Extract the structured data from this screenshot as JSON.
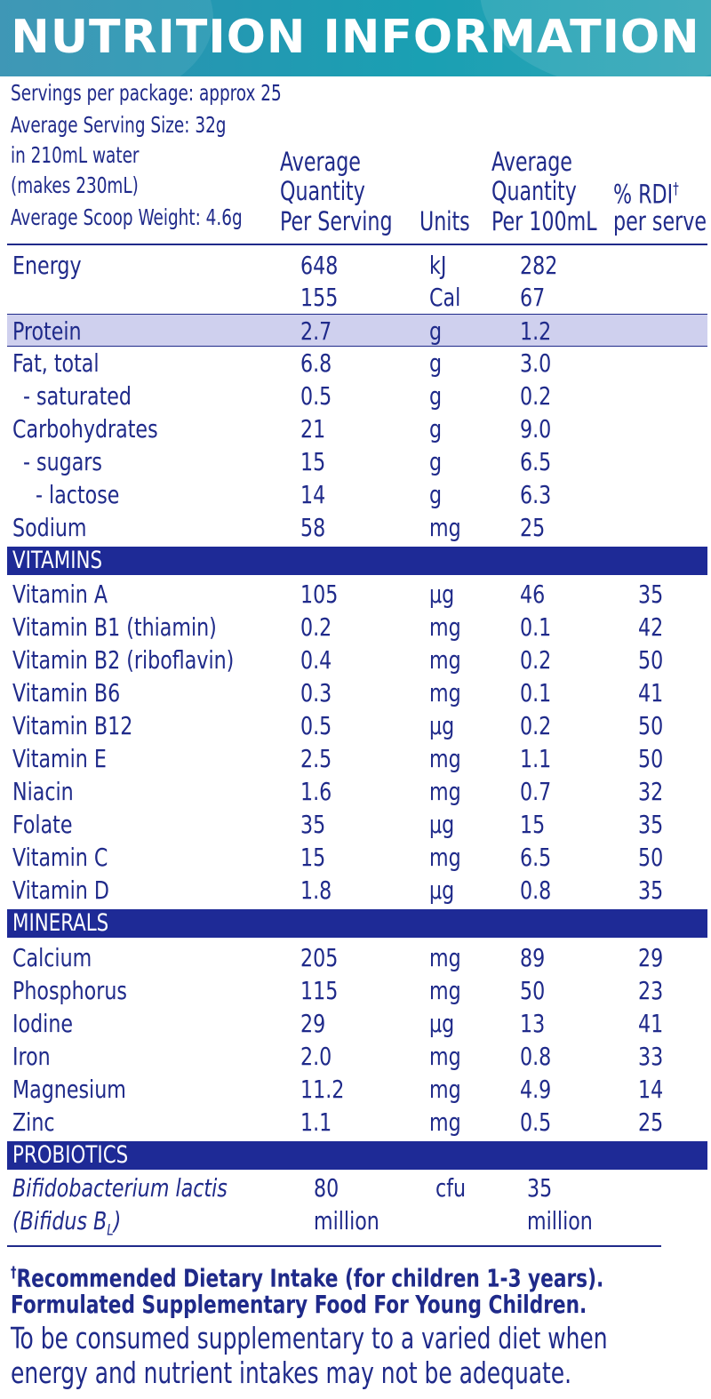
{
  "title": "NUTRITION INFORMATION",
  "header": {
    "servings": "Servings per package: approx 25",
    "serving_size": "Average Serving Size: 32g",
    "water": "in 210mL water",
    "makes": "(makes 230mL)",
    "scoop": "Average Scoop Weight: 4.6g"
  },
  "columns": {
    "per_serving_1": "Average",
    "per_serving_2": "Quantity",
    "per_serving_3": "Per Serving",
    "units": "Units",
    "per_100_1": "Average",
    "per_100_2": "Quantity",
    "per_100_3": "Per 100mL",
    "rdi_1": "% RDI",
    "rdi_dagger": "†",
    "rdi_2": "per serve"
  },
  "nutrients": [
    {
      "name": "Energy",
      "serve": "648",
      "unit": "kJ",
      "per100": "282",
      "rdi": ""
    },
    {
      "name": "",
      "serve": "155",
      "unit": "Cal",
      "per100": "67",
      "rdi": ""
    },
    {
      "name": "Protein",
      "serve": "2.7",
      "unit": "g",
      "per100": "1.2",
      "rdi": ""
    },
    {
      "name": "Fat, total",
      "serve": "6.8",
      "unit": "g",
      "per100": "3.0",
      "rdi": ""
    },
    {
      "name": "- saturated",
      "serve": "0.5",
      "unit": "g",
      "per100": "0.2",
      "rdi": ""
    },
    {
      "name": "Carbohydrates",
      "serve": "21",
      "unit": "g",
      "per100": "9.0",
      "rdi": ""
    },
    {
      "name": "- sugars",
      "serve": "15",
      "unit": "g",
      "per100": "6.5",
      "rdi": ""
    },
    {
      "name": "- lactose",
      "serve": "14",
      "unit": "g",
      "per100": "6.3",
      "rdi": ""
    },
    {
      "name": "Sodium",
      "serve": "58",
      "unit": "mg",
      "per100": "25",
      "rdi": ""
    }
  ],
  "vitamins_label": "VITAMINS",
  "vitamins": [
    {
      "name": "Vitamin A",
      "serve": "105",
      "unit": "µg",
      "per100": "46",
      "rdi": "35"
    },
    {
      "name": "Vitamin B1 (thiamin)",
      "serve": "0.2",
      "unit": "mg",
      "per100": "0.1",
      "rdi": "42"
    },
    {
      "name": "Vitamin B2 (riboflavin)",
      "serve": "0.4",
      "unit": "mg",
      "per100": "0.2",
      "rdi": "50"
    },
    {
      "name": "Vitamin B6",
      "serve": "0.3",
      "unit": "mg",
      "per100": "0.1",
      "rdi": "41"
    },
    {
      "name": "Vitamin B12",
      "serve": "0.5",
      "unit": "µg",
      "per100": "0.2",
      "rdi": "50"
    },
    {
      "name": "Vitamin E",
      "serve": "2.5",
      "unit": "mg",
      "per100": "1.1",
      "rdi": "50"
    },
    {
      "name": "Niacin",
      "serve": "1.6",
      "unit": "mg",
      "per100": "0.7",
      "rdi": "32"
    },
    {
      "name": "Folate",
      "serve": "35",
      "unit": "µg",
      "per100": "15",
      "rdi": "35"
    },
    {
      "name": "Vitamin C",
      "serve": "15",
      "unit": "mg",
      "per100": "6.5",
      "rdi": "50"
    },
    {
      "name": "Vitamin D",
      "serve": "1.8",
      "unit": "µg",
      "per100": "0.8",
      "rdi": "35"
    }
  ],
  "minerals_label": "MINERALS",
  "minerals": [
    {
      "name": "Calcium",
      "serve": "205",
      "unit": "mg",
      "per100": "89",
      "rdi": "29"
    },
    {
      "name": "Phosphorus",
      "serve": "115",
      "unit": "mg",
      "per100": "50",
      "rdi": "23"
    },
    {
      "name": "Iodine",
      "serve": "29",
      "unit": "µg",
      "per100": "13",
      "rdi": "41"
    },
    {
      "name": "Iron",
      "serve": "2.0",
      "unit": "mg",
      "per100": "0.8",
      "rdi": "33"
    },
    {
      "name": "Magnesium",
      "serve": "11.2",
      "unit": "mg",
      "per100": "4.9",
      "rdi": "14"
    },
    {
      "name": "Zinc",
      "serve": "1.1",
      "unit": "mg",
      "per100": "0.5",
      "rdi": "25"
    }
  ],
  "probiotics_label": "PROBIOTICS",
  "probiotic": {
    "name_1": "Bifidobacterium lactis",
    "name_2_prefix": "(Bifidus B",
    "name_2_sub": "L",
    "name_2_suffix": ")",
    "serve_1": "80",
    "serve_2": "million",
    "unit": "cfu",
    "per100_1": "35",
    "per100_2": "million"
  },
  "footer": {
    "dagger": "†",
    "line1": "Recommended Dietary Intake (for children 1-3 years).",
    "line2": "Formulated Supplementary Food For Young Children.",
    "line3": "To be consumed supplementary to a varied diet when",
    "line4": "energy and nutrient intakes may not be adequate."
  },
  "colors": {
    "text": "#1f2a8a",
    "section_bg": "#1e2a96",
    "highlight_bg": "#cfd0ee",
    "title_bg": "#1aa0b3"
  }
}
